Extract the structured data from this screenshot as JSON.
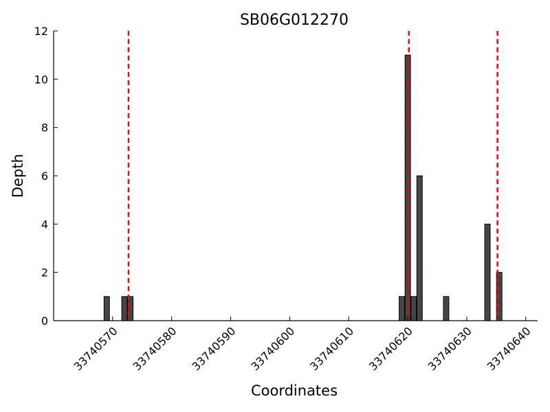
{
  "chart_data": {
    "type": "bar",
    "title": "SB06G012270",
    "xlabel": "Coordinates",
    "ylabel": "Depth",
    "xlim": [
      33740560,
      33740642
    ],
    "ylim": [
      0,
      12
    ],
    "x_ticks": [
      33740570,
      33740580,
      33740590,
      33740600,
      33740610,
      33740620,
      33740630,
      33740640
    ],
    "y_ticks": [
      0,
      2,
      4,
      6,
      8,
      10,
      12
    ],
    "bar_color": "#464646",
    "marker_color": "#ff0000",
    "bars": [
      {
        "x": 33740569.0,
        "depth": 1
      },
      {
        "x": 33740572.0,
        "depth": 1
      },
      {
        "x": 33740573.0,
        "depth": 1
      },
      {
        "x": 33740619.0,
        "depth": 1
      },
      {
        "x": 33740620.0,
        "depth": 11
      },
      {
        "x": 33740621.0,
        "depth": 1
      },
      {
        "x": 33740622.0,
        "depth": 6
      },
      {
        "x": 33740626.5,
        "depth": 1
      },
      {
        "x": 33740633.5,
        "depth": 4
      },
      {
        "x": 33740635.5,
        "depth": 2
      }
    ],
    "markers": [
      33740572.7,
      33740620.2,
      33740635.2
    ],
    "grid": false,
    "legend": "none"
  }
}
